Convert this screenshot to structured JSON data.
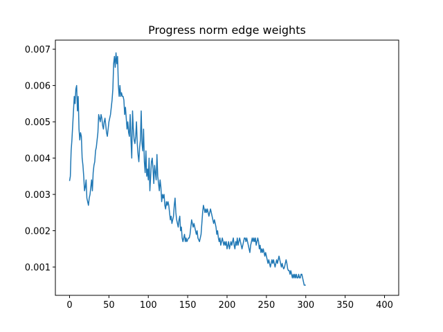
{
  "chart_data": {
    "type": "line",
    "title": "Progress norm edge weights",
    "xlabel": "",
    "ylabel": "",
    "xlim": [
      -18,
      418
    ],
    "ylim": [
      0.00022,
      0.00725
    ],
    "xticks": [
      0,
      50,
      100,
      150,
      200,
      250,
      300,
      350,
      400
    ],
    "xtick_labels": [
      "0",
      "50",
      "100",
      "150",
      "200",
      "250",
      "300",
      "350",
      "400"
    ],
    "yticks": [
      0.001,
      0.002,
      0.003,
      0.004,
      0.005,
      0.006,
      0.007
    ],
    "ytick_labels": [
      "0.001",
      "0.002",
      "0.003",
      "0.004",
      "0.005",
      "0.006",
      "0.007"
    ],
    "grid": false,
    "legend": "none",
    "series": [
      {
        "color": "#1f77b4",
        "points": [
          [
            0,
            0.00337
          ],
          [
            1,
            0.0035
          ],
          [
            2,
            0.0042
          ],
          [
            3,
            0.0045
          ],
          [
            4,
            0.0049
          ],
          [
            5,
            0.0053
          ],
          [
            6,
            0.0057
          ],
          [
            7,
            0.0055
          ],
          [
            8,
            0.0059
          ],
          [
            9,
            0.006
          ],
          [
            10,
            0.0053
          ],
          [
            11,
            0.0057
          ],
          [
            12,
            0.0048
          ],
          [
            13,
            0.0045
          ],
          [
            14,
            0.0047
          ],
          [
            15,
            0.0046
          ],
          [
            16,
            0.004
          ],
          [
            17,
            0.0038
          ],
          [
            18,
            0.0035
          ],
          [
            19,
            0.0031
          ],
          [
            20,
            0.0032
          ],
          [
            21,
            0.0034
          ],
          [
            22,
            0.0029
          ],
          [
            23,
            0.0028
          ],
          [
            24,
            0.0027
          ],
          [
            25,
            0.0029
          ],
          [
            26,
            0.003
          ],
          [
            27,
            0.0032
          ],
          [
            28,
            0.0034
          ],
          [
            29,
            0.0031
          ],
          [
            30,
            0.0036
          ],
          [
            31,
            0.0038
          ],
          [
            32,
            0.0039
          ],
          [
            33,
            0.0042
          ],
          [
            34,
            0.0043
          ],
          [
            35,
            0.0045
          ],
          [
            36,
            0.0047
          ],
          [
            37,
            0.0052
          ],
          [
            38,
            0.0051
          ],
          [
            39,
            0.005
          ],
          [
            40,
            0.0052
          ],
          [
            41,
            0.0051
          ],
          [
            42,
            0.0049
          ],
          [
            43,
            0.0048
          ],
          [
            44,
            0.005
          ],
          [
            45,
            0.0051
          ],
          [
            46,
            0.0049
          ],
          [
            47,
            0.0047
          ],
          [
            48,
            0.0046
          ],
          [
            49,
            0.0048
          ],
          [
            50,
            0.005
          ],
          [
            51,
            0.0051
          ],
          [
            52,
            0.0052
          ],
          [
            53,
            0.0054
          ],
          [
            54,
            0.0056
          ],
          [
            55,
            0.0059
          ],
          [
            56,
            0.0066
          ],
          [
            57,
            0.0068
          ],
          [
            58,
            0.0065
          ],
          [
            59,
            0.0069
          ],
          [
            60,
            0.0066
          ],
          [
            61,
            0.0068
          ],
          [
            62,
            0.006
          ],
          [
            63,
            0.0057
          ],
          [
            64,
            0.006
          ],
          [
            65,
            0.0057
          ],
          [
            66,
            0.0058
          ],
          [
            67,
            0.0057
          ],
          [
            68,
            0.0057
          ],
          [
            69,
            0.0056
          ],
          [
            70,
            0.0052
          ],
          [
            71,
            0.0054
          ],
          [
            72,
            0.0051
          ],
          [
            73,
            0.0048
          ],
          [
            74,
            0.005
          ],
          [
            75,
            0.0047
          ],
          [
            76,
            0.0046
          ],
          [
            77,
            0.0052
          ],
          [
            78,
            0.0045
          ],
          [
            79,
            0.004
          ],
          [
            80,
            0.0053
          ],
          [
            81,
            0.0048
          ],
          [
            82,
            0.0045
          ],
          [
            83,
            0.0044
          ],
          [
            84,
            0.0046
          ],
          [
            85,
            0.005
          ],
          [
            86,
            0.0044
          ],
          [
            87,
            0.0041
          ],
          [
            88,
            0.0039
          ],
          [
            89,
            0.0043
          ],
          [
            90,
            0.0045
          ],
          [
            91,
            0.0053
          ],
          [
            92,
            0.0044
          ],
          [
            93,
            0.0042
          ],
          [
            94,
            0.0048
          ],
          [
            95,
            0.0039
          ],
          [
            96,
            0.0036
          ],
          [
            97,
            0.0042
          ],
          [
            98,
            0.0035
          ],
          [
            99,
            0.0037
          ],
          [
            100,
            0.0034
          ],
          [
            101,
            0.004
          ],
          [
            102,
            0.0031
          ],
          [
            103,
            0.0035
          ],
          [
            104,
            0.0039
          ],
          [
            105,
            0.004
          ],
          [
            106,
            0.0037
          ],
          [
            107,
            0.0033
          ],
          [
            108,
            0.0038
          ],
          [
            109,
            0.0036
          ],
          [
            110,
            0.0034
          ],
          [
            111,
            0.0041
          ],
          [
            112,
            0.0035
          ],
          [
            113,
            0.0033
          ],
          [
            114,
            0.0031
          ],
          [
            115,
            0.0034
          ],
          [
            116,
            0.0032
          ],
          [
            117,
            0.0028
          ],
          [
            118,
            0.003
          ],
          [
            119,
            0.0029
          ],
          [
            120,
            0.003
          ],
          [
            121,
            0.0027
          ],
          [
            122,
            0.0026
          ],
          [
            123,
            0.0028
          ],
          [
            124,
            0.0027
          ],
          [
            125,
            0.0028
          ],
          [
            126,
            0.0027
          ],
          [
            127,
            0.0025
          ],
          [
            128,
            0.0023
          ],
          [
            129,
            0.0024
          ],
          [
            130,
            0.0022
          ],
          [
            131,
            0.0023
          ],
          [
            132,
            0.0024
          ],
          [
            133,
            0.0027
          ],
          [
            134,
            0.0029
          ],
          [
            135,
            0.0025
          ],
          [
            136,
            0.0023
          ],
          [
            137,
            0.0022
          ],
          [
            138,
            0.0021
          ],
          [
            139,
            0.0023
          ],
          [
            140,
            0.0024
          ],
          [
            141,
            0.002
          ],
          [
            142,
            0.0021
          ],
          [
            143,
            0.0018
          ],
          [
            144,
            0.0017
          ],
          [
            145,
            0.0018
          ],
          [
            146,
            0.0019
          ],
          [
            147,
            0.0017
          ],
          [
            148,
            0.0018
          ],
          [
            149,
            0.0017
          ],
          [
            150,
            0.00175
          ],
          [
            151,
            0.0018
          ],
          [
            152,
            0.0018
          ],
          [
            153,
            0.0019
          ],
          [
            154,
            0.0021
          ],
          [
            155,
            0.0023
          ],
          [
            156,
            0.0022
          ],
          [
            157,
            0.0021
          ],
          [
            158,
            0.0022
          ],
          [
            159,
            0.0021
          ],
          [
            160,
            0.002
          ],
          [
            161,
            0.0019
          ],
          [
            162,
            0.002
          ],
          [
            163,
            0.0018
          ],
          [
            164,
            0.00175
          ],
          [
            165,
            0.0017
          ],
          [
            166,
            0.0018
          ],
          [
            167,
            0.0019
          ],
          [
            168,
            0.0022
          ],
          [
            169,
            0.0025
          ],
          [
            170,
            0.0027
          ],
          [
            171,
            0.0026
          ],
          [
            172,
            0.0025
          ],
          [
            173,
            0.0026
          ],
          [
            174,
            0.0025
          ],
          [
            175,
            0.0026
          ],
          [
            176,
            0.0025
          ],
          [
            177,
            0.0024
          ],
          [
            178,
            0.0025
          ],
          [
            179,
            0.0026
          ],
          [
            180,
            0.0025
          ],
          [
            181,
            0.0024
          ],
          [
            182,
            0.0023
          ],
          [
            183,
            0.0022
          ],
          [
            184,
            0.0023
          ],
          [
            185,
            0.0022
          ],
          [
            186,
            0.0021
          ],
          [
            187,
            0.0019
          ],
          [
            188,
            0.002
          ],
          [
            189,
            0.0018
          ],
          [
            190,
            0.0017
          ],
          [
            191,
            0.0018
          ],
          [
            192,
            0.0016
          ],
          [
            193,
            0.0017
          ],
          [
            194,
            0.0018
          ],
          [
            195,
            0.0017
          ],
          [
            196,
            0.0016
          ],
          [
            197,
            0.0017
          ],
          [
            198,
            0.0016
          ],
          [
            199,
            0.0017
          ],
          [
            200,
            0.0015
          ],
          [
            201,
            0.0016
          ],
          [
            202,
            0.0017
          ],
          [
            203,
            0.0015
          ],
          [
            204,
            0.0016
          ],
          [
            205,
            0.0017
          ],
          [
            206,
            0.0016
          ],
          [
            207,
            0.0017
          ],
          [
            208,
            0.0018
          ],
          [
            209,
            0.0016
          ],
          [
            210,
            0.0015
          ],
          [
            211,
            0.0017
          ],
          [
            212,
            0.0016
          ],
          [
            213,
            0.0018
          ],
          [
            214,
            0.0016
          ],
          [
            215,
            0.0017
          ],
          [
            216,
            0.0018
          ],
          [
            217,
            0.0017
          ],
          [
            218,
            0.0016
          ],
          [
            219,
            0.0015
          ],
          [
            220,
            0.0016
          ],
          [
            221,
            0.0017
          ],
          [
            222,
            0.0018
          ],
          [
            223,
            0.0018
          ],
          [
            224,
            0.0017
          ],
          [
            225,
            0.0018
          ],
          [
            226,
            0.0017
          ],
          [
            227,
            0.0016
          ],
          [
            228,
            0.0015
          ],
          [
            229,
            0.0014
          ],
          [
            230,
            0.0016
          ],
          [
            231,
            0.0017
          ],
          [
            232,
            0.0018
          ],
          [
            233,
            0.0017
          ],
          [
            234,
            0.0018
          ],
          [
            235,
            0.0017
          ],
          [
            236,
            0.0018
          ],
          [
            237,
            0.0016
          ],
          [
            238,
            0.0017
          ],
          [
            239,
            0.0018
          ],
          [
            240,
            0.0017
          ],
          [
            241,
            0.0015
          ],
          [
            242,
            0.0016
          ],
          [
            243,
            0.0014
          ],
          [
            244,
            0.0015
          ],
          [
            245,
            0.0014
          ],
          [
            246,
            0.0015
          ],
          [
            247,
            0.0014
          ],
          [
            248,
            0.0013
          ],
          [
            249,
            0.0014
          ],
          [
            250,
            0.0013
          ],
          [
            251,
            0.0012
          ],
          [
            252,
            0.0011
          ],
          [
            253,
            0.0012
          ],
          [
            254,
            0.0011
          ],
          [
            255,
            0.001
          ],
          [
            256,
            0.0011
          ],
          [
            257,
            0.0012
          ],
          [
            258,
            0.0011
          ],
          [
            259,
            0.0012
          ],
          [
            260,
            0.0011
          ],
          [
            261,
            0.001
          ],
          [
            262,
            0.0011
          ],
          [
            263,
            0.0012
          ],
          [
            264,
            0.0011
          ],
          [
            265,
            0.0012
          ],
          [
            266,
            0.0013
          ],
          [
            267,
            0.0012
          ],
          [
            268,
            0.0011
          ],
          [
            269,
            0.001
          ],
          [
            270,
            0.0011
          ],
          [
            271,
            0.001
          ],
          [
            272,
            0.00095
          ],
          [
            273,
            0.001
          ],
          [
            274,
            0.0011
          ],
          [
            275,
            0.0012
          ],
          [
            276,
            0.0011
          ],
          [
            277,
            0.00095
          ],
          [
            278,
            0.0009
          ],
          [
            279,
            0.0009
          ],
          [
            280,
            0.0008
          ],
          [
            281,
            0.0009
          ],
          [
            282,
            0.0008
          ],
          [
            283,
            0.0007
          ],
          [
            284,
            0.0008
          ],
          [
            285,
            0.0007
          ],
          [
            286,
            0.0008
          ],
          [
            287,
            0.0007
          ],
          [
            288,
            0.0008
          ],
          [
            289,
            0.0007
          ],
          [
            290,
            0.0007
          ],
          [
            291,
            0.0008
          ],
          [
            292,
            0.0007
          ],
          [
            293,
            0.0007
          ],
          [
            294,
            0.0008
          ],
          [
            295,
            0.0008
          ],
          [
            296,
            0.0007
          ],
          [
            297,
            0.0006
          ],
          [
            298,
            0.0005
          ],
          [
            299,
            0.0005
          ],
          [
            300,
            0.0005
          ]
        ]
      }
    ]
  }
}
